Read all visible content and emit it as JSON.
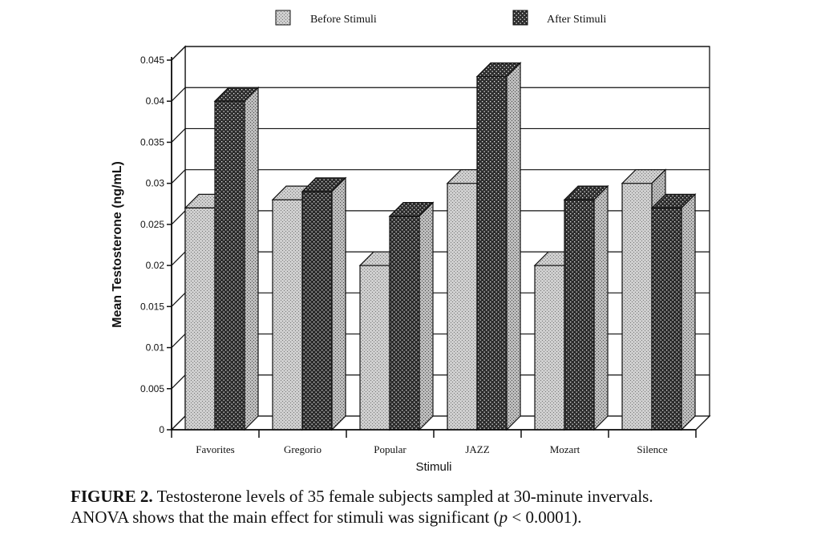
{
  "chart_data": {
    "type": "bar",
    "categories": [
      "Favorites",
      "Gregorio",
      "Popular",
      "JAZZ",
      "Mozart",
      "Silence"
    ],
    "series": [
      {
        "name": "Before Stimuli",
        "values": [
          0.027,
          0.028,
          0.02,
          0.03,
          0.02,
          0.03
        ]
      },
      {
        "name": "After Stimuli",
        "values": [
          0.04,
          0.029,
          0.026,
          0.043,
          0.028,
          0.027
        ]
      }
    ],
    "xlabel": "Stimuli",
    "ylabel": "Mean Testosterone (ng/mL)",
    "ylim": [
      0,
      0.045
    ],
    "yticks": [
      "0",
      "0.005",
      "0.01",
      "0.015",
      "0.02",
      "0.025",
      "0.03",
      "0.035",
      "0.04",
      "0.045"
    ],
    "grid": true,
    "legend_position": "top",
    "three_d": true
  },
  "caption": {
    "label": "FIGURE 2.",
    "text_line1": "Testosterone levels of 35 female subjects sampled at 30-minute invervals.",
    "text_line2_pre": "ANOVA shows that the main effect for stimuli was significant (",
    "text_line2_italic": "p",
    "text_line2_post": " < 0.0001)."
  },
  "colors": {
    "before_fill": "#d0d0d0",
    "after_fill": "#2e2e2e",
    "axis": "#111111"
  }
}
